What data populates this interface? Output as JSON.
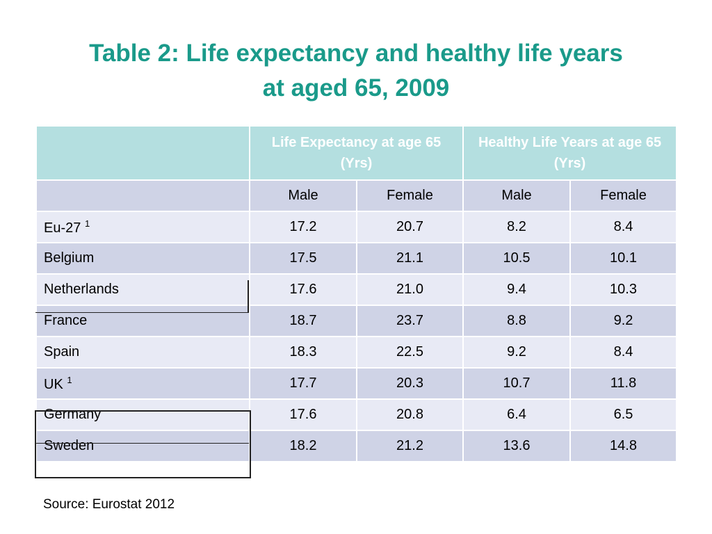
{
  "title": {
    "line1": "Table 2:  Life expectancy and healthy life years",
    "line2": "at aged 65, 2009"
  },
  "table": {
    "header": {
      "corner": "",
      "group1": "Life Expectancy at age 65 (Yrs)",
      "group2": "Healthy Life Years at age 65 (Yrs)"
    },
    "subheader": {
      "blank": "",
      "le_male": "Male",
      "le_female": "Female",
      "hly_male": "Male",
      "hly_female": "Female"
    },
    "rows": [
      {
        "country": "Eu-27",
        "note": "1",
        "le_male": "17.2",
        "le_female": "20.7",
        "hly_male": "8.2",
        "hly_female": "8.4",
        "bold": true
      },
      {
        "country": "Belgium",
        "note": "",
        "le_male": "17.5",
        "le_female": "21.1",
        "hly_male": "10.5",
        "hly_female": "10.1",
        "bold": false
      },
      {
        "country": "Netherlands",
        "note": "",
        "le_male": "17.6",
        "le_female": "21.0",
        "hly_male": "9.4",
        "hly_female": "10.3",
        "bold": false
      },
      {
        "country": "France",
        "note": "",
        "le_male": "18.7",
        "le_female": "23.7",
        "hly_male": "8.8",
        "hly_female": "9.2",
        "bold": false
      },
      {
        "country": "Spain",
        "note": "",
        "le_male": "18.3",
        "le_female": "22.5",
        "hly_male": "9.2",
        "hly_female": "8.4",
        "bold": false
      },
      {
        "country": "UK",
        "note": "1",
        "le_male": "17.7",
        "le_female": "20.3",
        "hly_male": "10.7",
        "hly_female": "11.8",
        "bold": false
      },
      {
        "country": "Germany",
        "note": "",
        "le_male": "17.6",
        "le_female": "20.8",
        "hly_male": "6.4",
        "hly_female": "6.5",
        "bold": true
      },
      {
        "country": "Sweden",
        "note": "",
        "le_male": "18.2",
        "le_female": "21.2",
        "hly_male": "13.6",
        "hly_female": "14.8",
        "bold": true
      }
    ]
  },
  "source": "Source:  Eurostat 2012",
  "colors": {
    "title": "#1a9a8a",
    "header_bg": "#b4dfe0",
    "row_dark": "#cfd3e6",
    "row_light": "#e8eaf5"
  }
}
